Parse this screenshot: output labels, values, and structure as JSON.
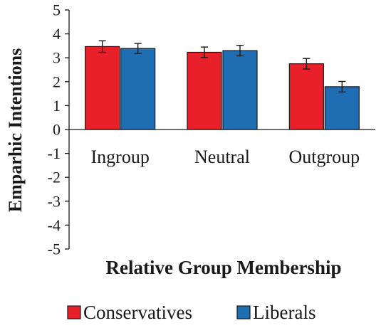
{
  "chart_data": {
    "type": "bar",
    "title": "",
    "xlabel": "Relative Group Membership",
    "ylabel": "Emparhic Intentions",
    "ylim": [
      -5,
      5
    ],
    "yticks": [
      "5",
      "4",
      "3",
      "2",
      "1",
      "0",
      "-1",
      "-2",
      "-3",
      "-4",
      "-5"
    ],
    "categories": [
      "Ingroup",
      "Neutral",
      "Outgroup"
    ],
    "series": [
      {
        "name": "Conservatives",
        "color": "#e8202a",
        "values": [
          3.47,
          3.23,
          2.75
        ],
        "errors": [
          0.24,
          0.22,
          0.22
        ]
      },
      {
        "name": "Liberals",
        "color": "#1f6db2",
        "values": [
          3.39,
          3.3,
          1.79
        ],
        "errors": [
          0.21,
          0.22,
          0.22
        ]
      }
    ],
    "grid": false,
    "legend": "bottom"
  }
}
